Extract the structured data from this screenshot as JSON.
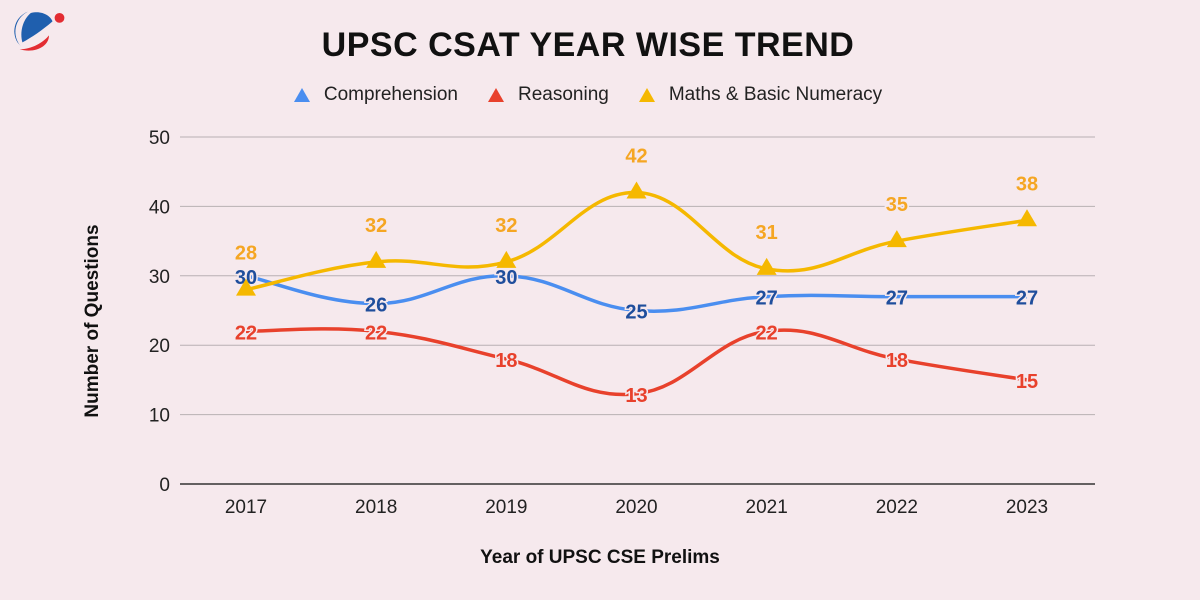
{
  "chart_data": {
    "type": "line",
    "title": "UPSC CSAT YEAR WISE TREND",
    "xlabel": "Year of UPSC CSE Prelims",
    "ylabel": "Number of Questions",
    "categories": [
      "2017",
      "2018",
      "2019",
      "2020",
      "2021",
      "2022",
      "2023"
    ],
    "ylim": [
      0,
      50
    ],
    "yticks": [
      0,
      10,
      20,
      30,
      40,
      50
    ],
    "grid": true,
    "legend_position": "top",
    "smooth": true,
    "series": [
      {
        "name": "Comprehension",
        "values": [
          30,
          26,
          30,
          25,
          27,
          27,
          27
        ],
        "color": "#4a8ef0",
        "label_color": "#1f4e9c"
      },
      {
        "name": "Reasoning",
        "values": [
          22,
          22,
          18,
          13,
          22,
          18,
          15
        ],
        "color": "#e8412c",
        "label_color": "#e8412c"
      },
      {
        "name": "Maths & Basic Numeracy",
        "values": [
          28,
          32,
          32,
          42,
          31,
          35,
          38
        ],
        "color": "#f5b800",
        "label_color": "#f5a623"
      }
    ]
  },
  "logo": {
    "colors": [
      "#1f5fae",
      "#e32c32"
    ]
  }
}
